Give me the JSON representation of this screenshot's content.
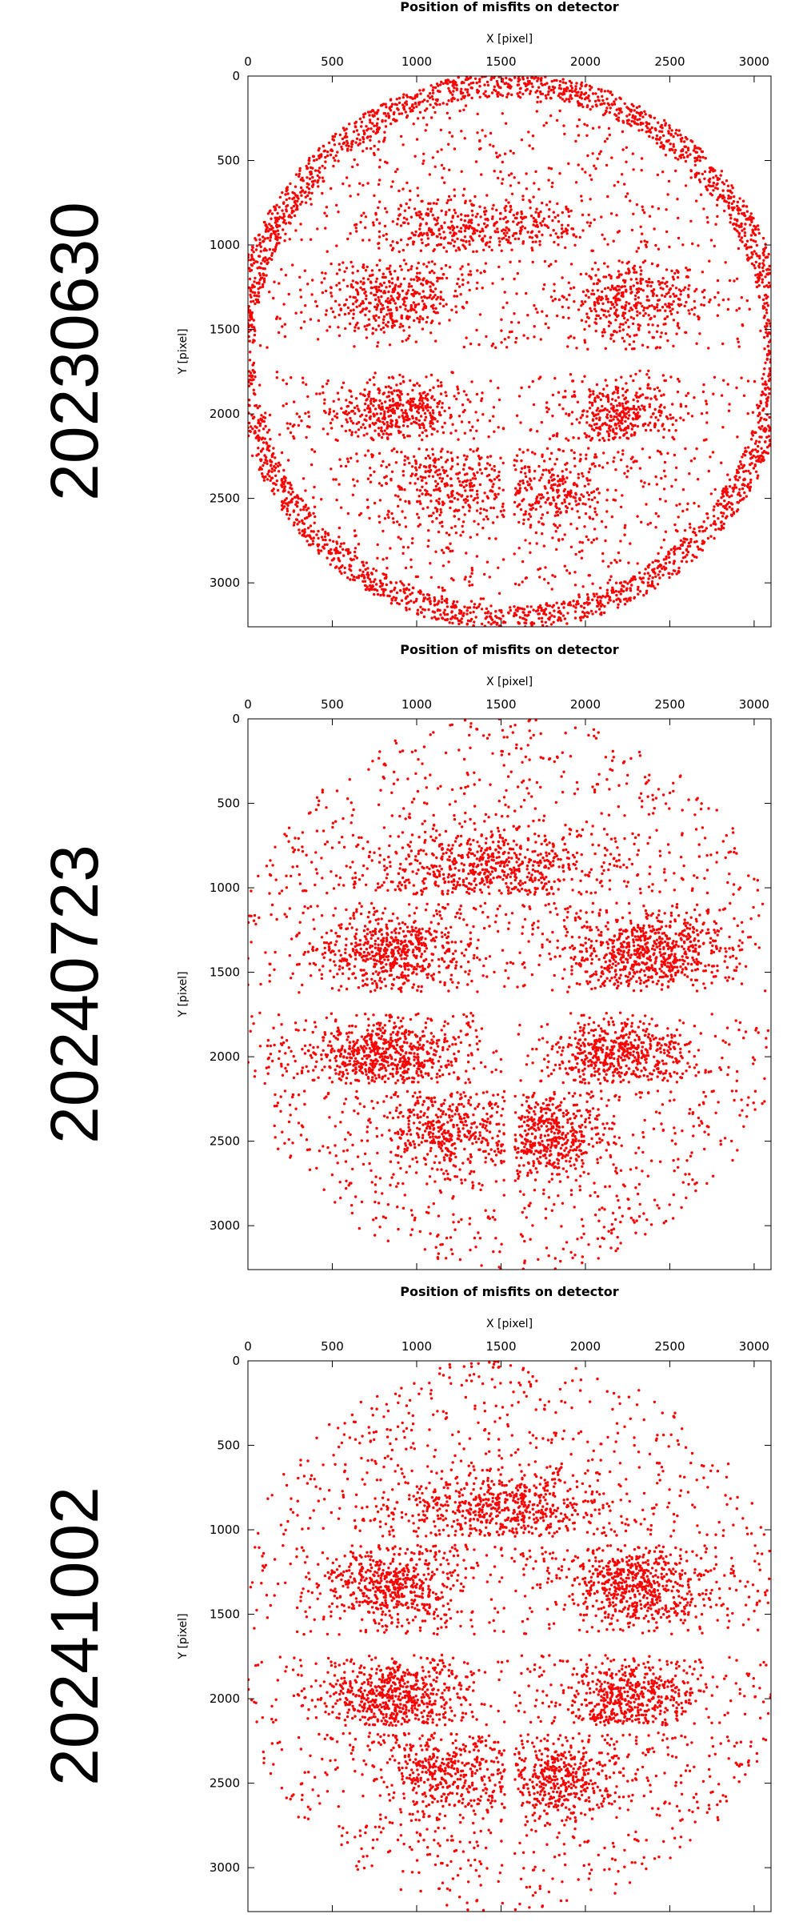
{
  "chart_data": [
    {
      "type": "scatter",
      "panel_label": "20230630",
      "title": "Position of misfits on detector",
      "xlabel": "X [pixel]",
      "ylabel": "Y [pixel]",
      "xlim": [
        0,
        3100
      ],
      "ylim": [
        3260,
        0
      ],
      "x_ticks": [
        0,
        500,
        1000,
        1500,
        2000,
        2500,
        3000
      ],
      "y_ticks": [
        0,
        500,
        1000,
        1500,
        2000,
        2500,
        3000
      ],
      "point_color": "#ff0000",
      "legend": "none",
      "grid": false,
      "distribution": {
        "detector_center": [
          1550,
          1630
        ],
        "detector_radius": 1650,
        "point_count": 6500,
        "edge_ring_fraction": 0.42,
        "edge_ring_width": 140,
        "clusters": [
          {
            "center": [
              1350,
              900
            ],
            "spread": [
              330,
              90
            ],
            "weight": 0.1
          },
          {
            "center": [
              850,
              1320
            ],
            "spread": [
              180,
              110
            ],
            "weight": 0.09
          },
          {
            "center": [
              2300,
              1320
            ],
            "spread": [
              200,
              110
            ],
            "weight": 0.09
          },
          {
            "center": [
              850,
              2000
            ],
            "spread": [
              180,
              110
            ],
            "weight": 0.1
          },
          {
            "center": [
              2200,
              2000
            ],
            "spread": [
              170,
              100
            ],
            "weight": 0.08
          },
          {
            "center": [
              1200,
              2420
            ],
            "spread": [
              200,
              130
            ],
            "weight": 0.07
          },
          {
            "center": [
              1800,
              2460
            ],
            "spread": [
              180,
              130
            ],
            "weight": 0.07
          }
        ]
      }
    },
    {
      "type": "scatter",
      "panel_label": "20240723",
      "title": "Position of misfits on detector",
      "xlabel": "X [pixel]",
      "ylabel": "Y [pixel]",
      "xlim": [
        0,
        3100
      ],
      "ylim": [
        3260,
        0
      ],
      "x_ticks": [
        0,
        500,
        1000,
        1500,
        2000,
        2500,
        3000
      ],
      "y_ticks": [
        0,
        500,
        1000,
        1500,
        2000,
        2500,
        3000
      ],
      "point_color": "#ff0000",
      "legend": "none",
      "grid": false,
      "distribution": {
        "detector_center": [
          1550,
          1630
        ],
        "detector_radius": 1650,
        "point_count": 5200,
        "edge_ring_fraction": 0,
        "edge_ring_width": 0,
        "clusters": [
          {
            "center": [
              1450,
              900
            ],
            "spread": [
              330,
              120
            ],
            "weight": 0.11
          },
          {
            "center": [
              850,
              1380
            ],
            "spread": [
              220,
              110
            ],
            "weight": 0.1
          },
          {
            "center": [
              2350,
              1380
            ],
            "spread": [
              230,
              110
            ],
            "weight": 0.12
          },
          {
            "center": [
              800,
              1990
            ],
            "spread": [
              220,
              110
            ],
            "weight": 0.11
          },
          {
            "center": [
              2200,
              1990
            ],
            "spread": [
              200,
              110
            ],
            "weight": 0.09
          },
          {
            "center": [
              1200,
              2420
            ],
            "spread": [
              200,
              130
            ],
            "weight": 0.07
          },
          {
            "center": [
              1800,
              2480
            ],
            "spread": [
              180,
              130
            ],
            "weight": 0.08
          }
        ]
      }
    },
    {
      "type": "scatter",
      "panel_label": "20241002",
      "title": "Position of misfits on detector",
      "xlabel": "X [pixel]",
      "ylabel": "Y [pixel]",
      "xlim": [
        0,
        3100
      ],
      "ylim": [
        3260,
        0
      ],
      "x_ticks": [
        0,
        500,
        1000,
        1500,
        2000,
        2500,
        3000
      ],
      "y_ticks": [
        0,
        500,
        1000,
        1500,
        2000,
        2500,
        3000
      ],
      "point_color": "#ff0000",
      "legend": "none",
      "grid": false,
      "distribution": {
        "detector_center": [
          1550,
          1630
        ],
        "detector_radius": 1650,
        "point_count": 5000,
        "edge_ring_fraction": 0,
        "edge_ring_width": 0,
        "clusters": [
          {
            "center": [
              1450,
              880
            ],
            "spread": [
              330,
              120
            ],
            "weight": 0.11
          },
          {
            "center": [
              850,
              1330
            ],
            "spread": [
              200,
              120
            ],
            "weight": 0.1
          },
          {
            "center": [
              2300,
              1330
            ],
            "spread": [
              210,
              120
            ],
            "weight": 0.11
          },
          {
            "center": [
              850,
              2000
            ],
            "spread": [
              200,
              110
            ],
            "weight": 0.11
          },
          {
            "center": [
              2250,
              2000
            ],
            "spread": [
              180,
              110
            ],
            "weight": 0.09
          },
          {
            "center": [
              1200,
              2420
            ],
            "spread": [
              200,
              140
            ],
            "weight": 0.07
          },
          {
            "center": [
              1850,
              2460
            ],
            "spread": [
              180,
              140
            ],
            "weight": 0.08
          }
        ]
      }
    }
  ]
}
